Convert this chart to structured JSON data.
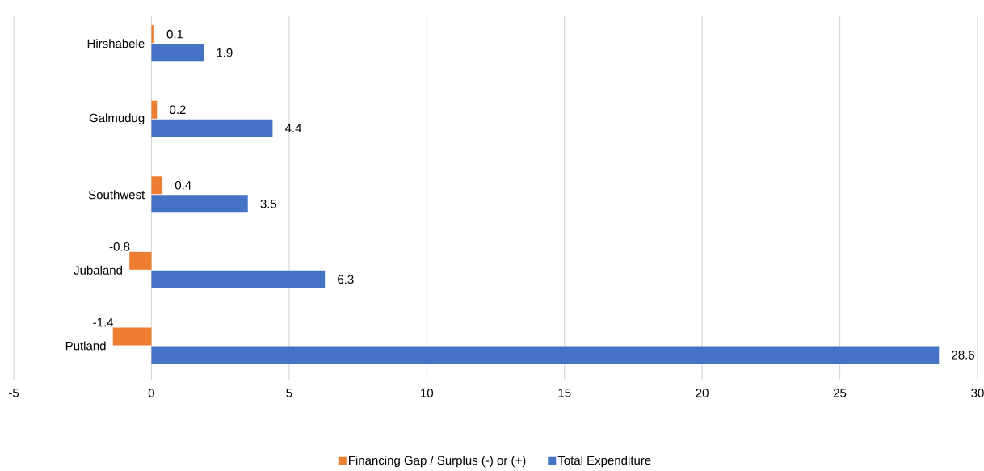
{
  "chart_data": {
    "type": "bar",
    "orientation": "horizontal",
    "categories": [
      "Hirshabele",
      "Galmudug",
      "Southwest",
      "Jubaland",
      "Putland"
    ],
    "series": [
      {
        "name": "Financing Gap / Surplus (-) or (+)",
        "color": "#ed7d31",
        "values": [
          0.1,
          0.2,
          0.4,
          -0.8,
          -1.4
        ]
      },
      {
        "name": "Total Expenditure",
        "color": "#4472c4",
        "values": [
          1.9,
          4.4,
          3.5,
          6.3,
          28.6
        ]
      }
    ],
    "xlim": [
      -5,
      30
    ],
    "xticks": [
      -5,
      0,
      5,
      10,
      15,
      20,
      25,
      30
    ],
    "grid": "x",
    "legend": "bottom",
    "data_labels": true
  }
}
